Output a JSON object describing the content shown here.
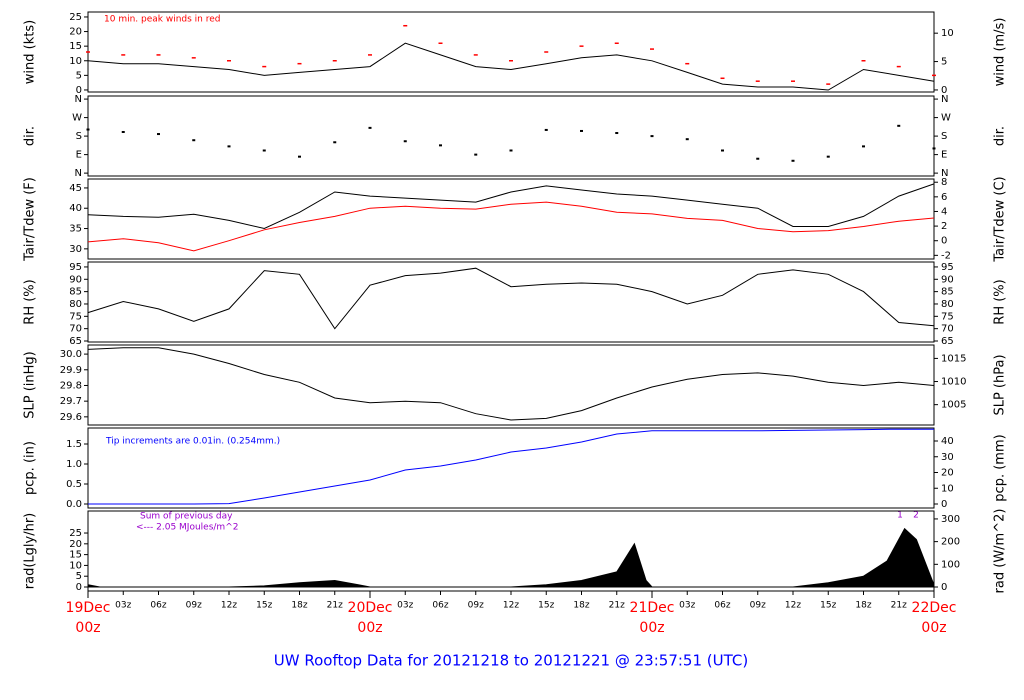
{
  "title": "UW Rooftop Data for 20121218  to  20121221 @ 23:57:51  (UTC)",
  "x_axis": {
    "xlim": [
      0,
      72
    ],
    "xticks": [
      {
        "value": 3,
        "label": "03z"
      },
      {
        "value": 6,
        "label": "06z"
      },
      {
        "value": 9,
        "label": "09z"
      },
      {
        "value": 12,
        "label": "12z"
      },
      {
        "value": 15,
        "label": "15z"
      },
      {
        "value": 18,
        "label": "18z"
      },
      {
        "value": 21,
        "label": "21z"
      },
      {
        "value": 27,
        "label": "03z"
      },
      {
        "value": 30,
        "label": "06z"
      },
      {
        "value": 33,
        "label": "09z"
      },
      {
        "value": 36,
        "label": "12z"
      },
      {
        "value": 39,
        "label": "15z"
      },
      {
        "value": 42,
        "label": "18z"
      },
      {
        "value": 45,
        "label": "21z"
      },
      {
        "value": 51,
        "label": "03z"
      },
      {
        "value": 54,
        "label": "06z"
      },
      {
        "value": 57,
        "label": "09z"
      },
      {
        "value": 60,
        "label": "12z"
      },
      {
        "value": 63,
        "label": "15z"
      },
      {
        "value": 66,
        "label": "18z"
      },
      {
        "value": 69,
        "label": "21z"
      }
    ],
    "day_ticks": [
      {
        "value": 0,
        "label": "19Dec",
        "hour": "00z"
      },
      {
        "value": 24,
        "label": "20Dec",
        "hour": "00z"
      },
      {
        "value": 48,
        "label": "21Dec",
        "hour": "00z"
      },
      {
        "value": 72,
        "label": "22Dec",
        "hour": "00z"
      }
    ]
  },
  "chart_data": [
    {
      "type": "line",
      "ylabel": "wind (kts)",
      "y2label": "wind (m/s)",
      "annotation": "10 min. peak winds in red",
      "ylim": [
        -0.7,
        26.7
      ],
      "yticks": [
        0,
        5,
        10,
        15,
        20,
        25
      ],
      "y2lim": [
        -0.36,
        13.73
      ],
      "y2ticks": [
        0,
        5,
        10
      ],
      "x": [
        0,
        3,
        6,
        9,
        12,
        15,
        18,
        21,
        24,
        27,
        30,
        33,
        36,
        39,
        42,
        45,
        48,
        51,
        54,
        57,
        60,
        63,
        66,
        69,
        72
      ],
      "series": [
        {
          "name": "wind",
          "color": "#000000",
          "values": [
            10,
            9,
            9,
            8,
            7,
            5,
            6,
            7,
            8,
            16,
            12,
            8,
            7,
            9,
            11,
            12,
            10,
            6,
            2,
            1,
            1,
            0,
            7,
            5,
            3
          ]
        },
        {
          "name": "peak",
          "color": "#ff0000",
          "style": "dash",
          "values": [
            13,
            12,
            12,
            11,
            10,
            8,
            9,
            10,
            12,
            22,
            16,
            12,
            10,
            13,
            15,
            16,
            14,
            9,
            4,
            3,
            3,
            2,
            10,
            8,
            5
          ]
        }
      ]
    },
    {
      "type": "scatter",
      "ylabel": "dir.",
      "y2label": "dir.",
      "ylim": [
        -14,
        375
      ],
      "yticks": [
        {
          "value": 0,
          "label": "N"
        },
        {
          "value": 90,
          "label": "E"
        },
        {
          "value": 180,
          "label": "S"
        },
        {
          "value": 270,
          "label": "W"
        },
        {
          "value": 360,
          "label": "N"
        }
      ],
      "y2lim": [
        -14,
        375
      ],
      "y2ticks": [
        {
          "value": 0,
          "label": "N"
        },
        {
          "value": 90,
          "label": "E"
        },
        {
          "value": 180,
          "label": "S"
        },
        {
          "value": 270,
          "label": "W"
        },
        {
          "value": 360,
          "label": "N"
        }
      ],
      "x": [
        0,
        3,
        6,
        9,
        12,
        15,
        18,
        21,
        24,
        27,
        30,
        33,
        36,
        39,
        42,
        45,
        48,
        51,
        54,
        57,
        60,
        63,
        66,
        69,
        72
      ],
      "series": [
        {
          "name": "dir",
          "color": "#000000",
          "values": [
            212,
            200,
            190,
            160,
            130,
            110,
            80,
            150,
            220,
            155,
            135,
            90,
            110,
            210,
            205,
            195,
            180,
            165,
            110,
            70,
            60,
            80,
            130,
            230,
            120
          ]
        }
      ]
    },
    {
      "type": "line",
      "ylabel": "Tair/Tdew (F)",
      "y2label": "Tair/Tdew (C)",
      "ylim": [
        27.5,
        47.2
      ],
      "yticks": [
        30,
        35,
        40,
        45
      ],
      "y2lim": [
        -2.5,
        8.44
      ],
      "y2ticks": [
        -2,
        0,
        2,
        4,
        6,
        8
      ],
      "x": [
        0,
        3,
        6,
        9,
        12,
        15,
        18,
        21,
        24,
        27,
        30,
        33,
        36,
        39,
        42,
        45,
        48,
        51,
        54,
        57,
        60,
        63,
        66,
        69,
        72
      ],
      "series": [
        {
          "name": "Tair",
          "color": "#000000",
          "values": [
            38.4,
            38,
            37.8,
            38.5,
            37,
            35,
            39,
            44,
            43,
            42.5,
            42,
            41.5,
            44,
            45.5,
            44.5,
            43.5,
            43,
            42,
            41,
            40,
            35.5,
            35.5,
            38,
            43,
            46
          ]
        },
        {
          "name": "Tdew",
          "color": "#ff0000",
          "values": [
            31.7,
            32.5,
            31.5,
            29.5,
            32,
            34.7,
            36.5,
            38,
            40,
            40.5,
            40,
            39.8,
            41,
            41.5,
            40.5,
            39,
            38.6,
            37.5,
            37,
            35,
            34.2,
            34.5,
            35.5,
            36.8,
            37.6
          ]
        }
      ]
    },
    {
      "type": "line",
      "ylabel": "RH (%)",
      "y2label": "RH (%)",
      "ylim": [
        64.6,
        97
      ],
      "yticks": [
        65,
        70,
        75,
        80,
        85,
        90,
        95
      ],
      "y2lim": [
        64.6,
        97
      ],
      "y2ticks": [
        65,
        70,
        75,
        80,
        85,
        90,
        95
      ],
      "x": [
        0,
        3,
        6,
        9,
        12,
        15,
        18,
        21,
        24,
        27,
        30,
        33,
        36,
        39,
        42,
        45,
        48,
        51,
        54,
        57,
        60,
        63,
        66,
        69,
        72
      ],
      "series": [
        {
          "name": "RH",
          "color": "#000000",
          "values": [
            76.5,
            81,
            78,
            73,
            78,
            93.5,
            92,
            70,
            87.6,
            91.5,
            92.5,
            94.5,
            87,
            88,
            88.5,
            88,
            85,
            80,
            83.5,
            92,
            93.8,
            92,
            85,
            72.5,
            71.2
          ]
        }
      ]
    },
    {
      "type": "line",
      "ylabel": "SLP (inHg)",
      "y2label": "SLP (hPa)",
      "ylim": [
        29.548,
        30.058
      ],
      "yticks": [
        {
          "value": 29.6,
          "label": "29.6"
        },
        {
          "value": 29.7,
          "label": "29.7"
        },
        {
          "value": 29.8,
          "label": "29.8"
        },
        {
          "value": 29.9,
          "label": "29.9"
        },
        {
          "value": 30,
          "label": "30.0"
        }
      ],
      "y2lim": [
        1000.6,
        1017.9
      ],
      "y2ticks": [
        1005,
        1010,
        1015
      ],
      "x": [
        0,
        3,
        6,
        9,
        12,
        15,
        18,
        21,
        24,
        27,
        30,
        33,
        36,
        39,
        42,
        45,
        48,
        51,
        54,
        57,
        60,
        63,
        66,
        69,
        72
      ],
      "series": [
        {
          "name": "SLP",
          "color": "#000000",
          "values": [
            30.03,
            30.04,
            30.04,
            30.0,
            29.94,
            29.87,
            29.82,
            29.72,
            29.69,
            29.7,
            29.69,
            29.62,
            29.58,
            29.59,
            29.64,
            29.72,
            29.79,
            29.84,
            29.87,
            29.88,
            29.86,
            29.82,
            29.8,
            29.82,
            29.8
          ]
        }
      ]
    },
    {
      "type": "line",
      "ylabel": "pcp. (in)",
      "y2label": "pcp. (mm)",
      "annotation": "Tip increments are 0.01in. (0.254mm.)",
      "ylim": [
        -0.1,
        1.9
      ],
      "yticks": [
        {
          "value": 0,
          "label": "0.0"
        },
        {
          "value": 0.5,
          "label": "0.5"
        },
        {
          "value": 1,
          "label": "1.0"
        },
        {
          "value": 1.5,
          "label": "1.5"
        }
      ],
      "y2lim": [
        -2.54,
        48.26
      ],
      "y2ticks": [
        0,
        10,
        20,
        30,
        40
      ],
      "x": [
        0,
        3,
        6,
        9,
        12,
        15,
        18,
        21,
        24,
        27,
        30,
        33,
        36,
        39,
        42,
        45,
        48,
        51,
        54,
        57,
        60,
        63,
        66,
        69,
        72
      ],
      "series": [
        {
          "name": "pcp",
          "color": "#0000ff",
          "values": [
            0,
            0,
            0,
            0,
            0.01,
            0.15,
            0.3,
            0.45,
            0.6,
            0.85,
            0.95,
            1.1,
            1.3,
            1.4,
            1.55,
            1.75,
            1.83,
            1.83,
            1.83,
            1.83,
            1.84,
            1.85,
            1.86,
            1.87,
            1.87
          ]
        }
      ]
    },
    {
      "type": "area",
      "ylabel": "rad(Lgly/hr)",
      "y2label": "rad (W/m^2)",
      "annotation": "Sum of previous day",
      "annotation2": "<--- 2.05 MJoules/m^2",
      "marks": [
        "1",
        "2"
      ],
      "ylim": [
        -1.85,
        35.2
      ],
      "yticks": [
        0,
        5,
        10,
        15,
        20,
        25
      ],
      "y2lim": [
        -17.6,
        335
      ],
      "y2ticks": [
        0,
        100,
        200,
        300
      ],
      "x": [
        0,
        1,
        12,
        15,
        18,
        21,
        23,
        24,
        36,
        39,
        42,
        45,
        46.5,
        47.5,
        48,
        60,
        63,
        66,
        68,
        69.5,
        70.5,
        71.5,
        72
      ],
      "series": [
        {
          "name": "rad",
          "color": "#000000",
          "values": [
            1,
            0,
            0,
            0.5,
            2,
            3,
            1,
            0,
            0,
            1,
            3,
            7,
            20,
            3,
            0,
            0,
            2,
            5,
            12,
            27,
            22,
            8,
            1
          ]
        }
      ]
    }
  ]
}
